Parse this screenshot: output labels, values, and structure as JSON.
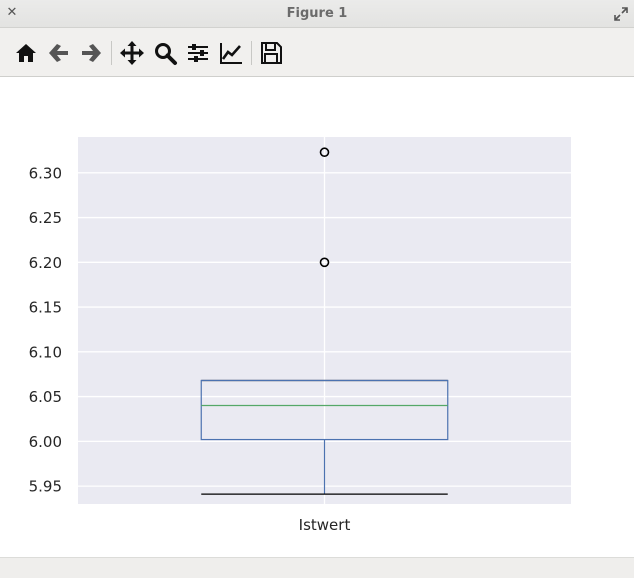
{
  "window": {
    "title": "Figure 1"
  },
  "toolbar": {
    "buttons": [
      {
        "name": "home-button",
        "icon": "home-icon"
      },
      {
        "name": "back-button",
        "icon": "arrow-left-icon"
      },
      {
        "name": "forward-button",
        "icon": "arrow-right-icon"
      },
      {
        "name": "pan-button",
        "icon": "move-icon"
      },
      {
        "name": "zoom-button",
        "icon": "magnifier-icon"
      },
      {
        "name": "configure-subplots-button",
        "icon": "sliders-icon"
      },
      {
        "name": "edit-axes-button",
        "icon": "line-chart-icon"
      },
      {
        "name": "save-button",
        "icon": "floppy-disk-icon"
      }
    ]
  },
  "chart_data": {
    "type": "box",
    "categories": [
      "Istwert"
    ],
    "ylim": [
      5.93,
      6.34
    ],
    "yticks": [
      "5.95",
      "6.00",
      "6.05",
      "6.10",
      "6.15",
      "6.20",
      "6.25",
      "6.30"
    ],
    "grid": true,
    "colors": {
      "background": "#eaeaf2",
      "grid": "#ffffff",
      "box": "#4c72b0",
      "median": "#55a868",
      "whisker": "#4c72b0",
      "cap": "#000000"
    },
    "boxes": [
      {
        "label": "Istwert",
        "whisker_low": 5.941,
        "q1": 6.002,
        "median": 6.04,
        "q3": 6.068,
        "whisker_high": 6.068,
        "fliers": [
          6.2,
          6.323
        ]
      }
    ]
  }
}
